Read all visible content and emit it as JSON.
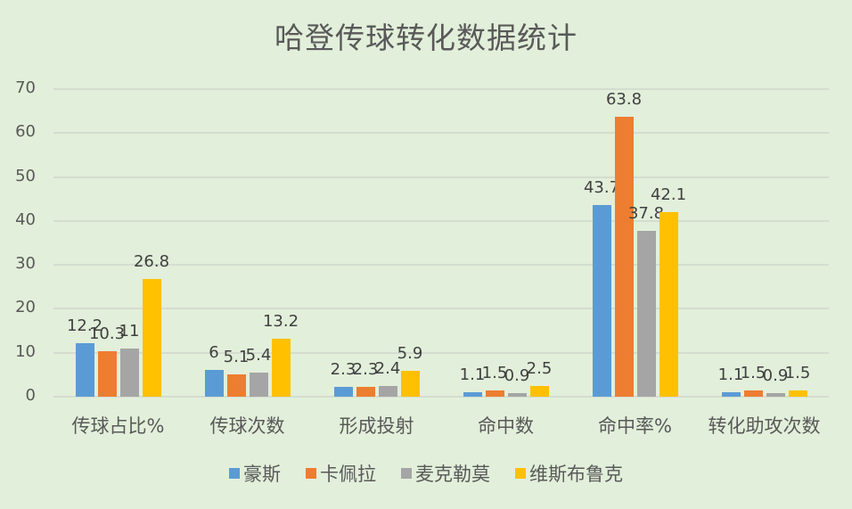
{
  "title": "哈登传球转化数据统计",
  "chart_data": {
    "type": "bar",
    "title": "哈登传球转化数据统计",
    "xlabel": "",
    "ylabel": "",
    "ylim": [
      0,
      70
    ],
    "yticks": [
      0,
      10,
      20,
      30,
      40,
      50,
      60,
      70
    ],
    "grid": true,
    "legend_position": "bottom",
    "categories": [
      "传球占比%",
      "传球次数",
      "形成投射",
      "命中数",
      "命中率%",
      "转化助攻次数"
    ],
    "series": [
      {
        "name": "豪斯",
        "color": "#5b9bd5",
        "values": [
          12.2,
          6,
          2.3,
          1.1,
          43.7,
          1.1
        ]
      },
      {
        "name": "卡佩拉",
        "color": "#ed7d31",
        "values": [
          10.3,
          5.1,
          2.3,
          1.5,
          63.8,
          1.5
        ]
      },
      {
        "name": "麦克勒莫",
        "color": "#a5a5a5",
        "values": [
          11,
          5.4,
          2.4,
          0.9,
          37.8,
          0.9
        ]
      },
      {
        "name": "维斯布鲁克",
        "color": "#ffc000",
        "values": [
          26.8,
          13.2,
          5.9,
          2.5,
          42.1,
          1.5
        ]
      }
    ]
  }
}
